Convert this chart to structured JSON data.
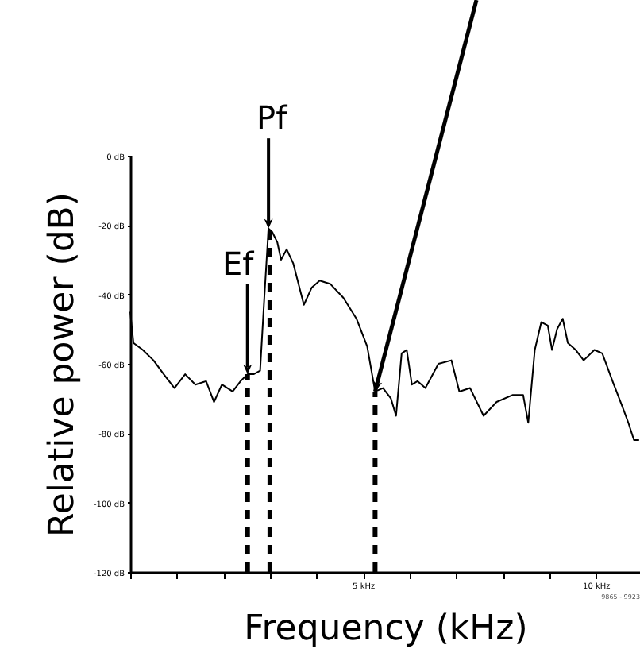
{
  "chart_data": {
    "type": "line",
    "xlabel": "Frequency (kHz)",
    "ylabel": "Relative power (dB)",
    "x": [
      0.0,
      0.07,
      0.27,
      0.5,
      0.72,
      0.95,
      1.18,
      1.4,
      1.63,
      1.8,
      1.97,
      2.2,
      2.37,
      2.52,
      2.65,
      2.79,
      2.88,
      2.97,
      3.05,
      3.16,
      3.24,
      3.36,
      3.5,
      3.73,
      3.9,
      4.07,
      4.3,
      4.58,
      4.86,
      5.09,
      5.26,
      5.43,
      5.6,
      5.71,
      5.83,
      5.94,
      6.05,
      6.17,
      6.34,
      6.62,
      6.9,
      7.07,
      7.3,
      7.59,
      7.87,
      8.21,
      8.44,
      8.55,
      8.69,
      8.83,
      8.97,
      9.06,
      9.17,
      9.29,
      9.4,
      9.57,
      9.74,
      9.97,
      10.14,
      10.36,
      10.59,
      10.7,
      10.82,
      10.93
    ],
    "series": [
      {
        "color": "#000000",
        "values": [
          -45,
          -54,
          -56,
          -59,
          -63,
          -67,
          -63,
          -66,
          -65,
          -71,
          -66,
          -68,
          -65,
          -63,
          -63,
          -62,
          -41,
          -21,
          -22,
          -25,
          -30,
          -27,
          -31,
          -43,
          -38,
          -36,
          -37,
          -41,
          -47,
          -55,
          -68,
          -67,
          -70,
          -75,
          -57,
          -56,
          -66,
          -65,
          -67,
          -60,
          -59,
          -68,
          -67,
          -75,
          -71,
          -69,
          -69,
          -77,
          -56,
          -48,
          -49,
          -56,
          -50,
          -47,
          -54,
          -56,
          -59,
          -56,
          -57,
          -65,
          -73,
          -77,
          -82,
          -82
        ]
      }
    ],
    "xlim": [
      0,
      10.95
    ],
    "xticks": [
      {
        "value": 0,
        "label": null
      },
      {
        "value": 1,
        "label": null
      },
      {
        "value": 2,
        "label": null
      },
      {
        "value": 3,
        "label": null
      },
      {
        "value": 4,
        "label": null
      },
      {
        "value": 5,
        "label": "5 kHz"
      },
      {
        "value": 6,
        "label": null
      },
      {
        "value": 7,
        "label": null
      },
      {
        "value": 8,
        "label": null
      },
      {
        "value": 9,
        "label": null
      },
      {
        "value": 10,
        "label": "10 kHz"
      }
    ],
    "ylim": [
      -120,
      0
    ],
    "yticks": [
      {
        "value": 0,
        "label": "0 dB"
      },
      {
        "value": -20,
        "label": "-20 dB"
      },
      {
        "value": -40,
        "label": "-40 dB"
      },
      {
        "value": -60,
        "label": "-60 dB"
      },
      {
        "value": -80,
        "label": "-80 dB"
      },
      {
        "value": -100,
        "label": "-100 dB"
      },
      {
        "value": -120,
        "label": "-120 dB"
      }
    ],
    "ref_lines": [
      {
        "axis": "x",
        "value": 2.52,
        "color": "#000000",
        "line_style": "dashed"
      },
      {
        "axis": "x",
        "value": 3.0,
        "color": "#000000",
        "line_style": "dashed"
      },
      {
        "axis": "x",
        "value": 5.26,
        "color": "#000000",
        "line_style": "dashed"
      }
    ],
    "annotations": [
      {
        "text": "Ef",
        "x": 2.52,
        "y": -63
      },
      {
        "text": "Pf",
        "x": 2.97,
        "y": -21
      },
      "9865 - 9923"
    ],
    "grid": false,
    "marker": "none",
    "line_style": "solid"
  }
}
